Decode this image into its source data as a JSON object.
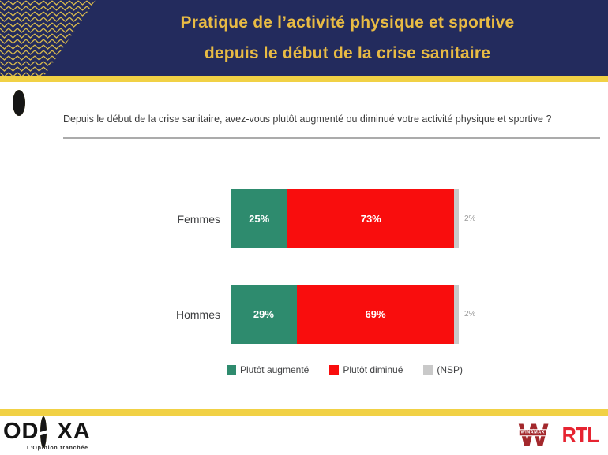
{
  "header": {
    "title_line1": "Pratique de l’activité physique et sportive",
    "title_line2": "depuis le début de la crise sanitaire",
    "bg_color": "#232B5D",
    "accent_gold": "#F1D145"
  },
  "question": {
    "text": "Depuis le début de la crise sanitaire, avez-vous plutôt augmenté ou diminué votre activité physique et sportive ?"
  },
  "chart_data": {
    "type": "bar",
    "orientation": "horizontal_stacked",
    "title": "",
    "categories": [
      "Femmes",
      "Hommes"
    ],
    "series": [
      {
        "name": "Plutôt augmenté",
        "color": "#2E8B6E",
        "values": [
          25,
          29
        ],
        "label_outside": false
      },
      {
        "name": "Plutôt diminué",
        "color": "#F90D0D",
        "values": [
          73,
          69
        ],
        "label_outside": false
      },
      {
        "name": "(NSP)",
        "color": "#C9C9C9",
        "values": [
          2,
          2
        ],
        "label_outside": true
      }
    ],
    "value_suffix": "%",
    "xlim": [
      0,
      100
    ],
    "grid": false,
    "legend_position": "bottom"
  },
  "footer": {
    "odoxa_left": "OD",
    "odoxa_right": "XA",
    "odoxa_tagline": "L’Opinion tranchée",
    "winamax_label": "WINAMAX",
    "rtl_label": "RTL"
  }
}
